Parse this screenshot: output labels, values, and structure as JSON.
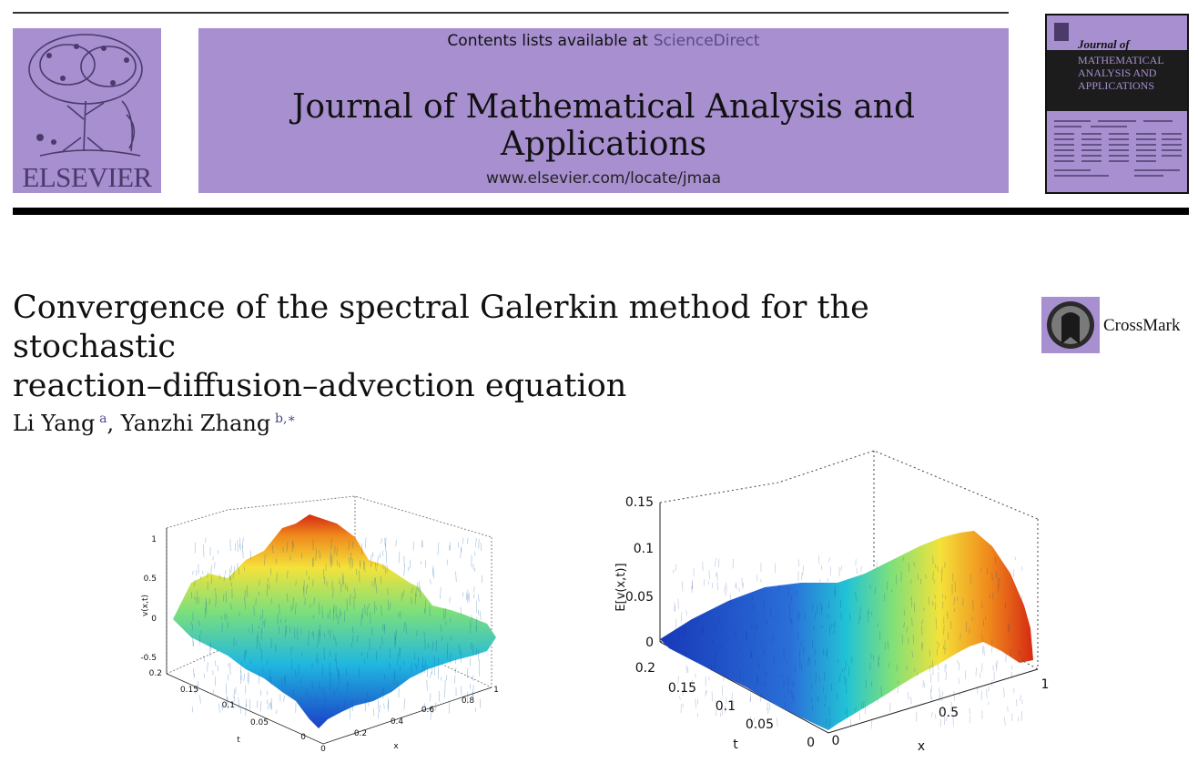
{
  "header": {
    "contents_prefix": "Contents lists available at",
    "contents_link": "ScienceDirect",
    "journal_title": "Journal of Mathematical Analysis and Applications",
    "url": "www.elsevier.com/locate/jmaa",
    "publisher_logo_text": "ELSEVIER",
    "cover_journal": "Journal of",
    "cover_name_lines": [
      "MATHEMATICAL",
      "ANALYSIS AND",
      "APPLICATIONS"
    ],
    "crossmark_label": "CrossMark"
  },
  "article": {
    "title_line1": "Convergence of the spectral Galerkin method for the stochastic",
    "title_line2": "reaction–diffusion–advection equation",
    "authors": [
      {
        "name": "Li Yang",
        "sup": "a"
      },
      {
        "name": "Yanzhi Zhang",
        "sup": "b,∗"
      }
    ]
  },
  "figures": [
    {
      "zlabel": "v(x,t)",
      "xlabel": "x",
      "ylabel": "t",
      "zticks": [
        "1",
        "0.5",
        "0",
        "-0.5"
      ],
      "xticks": [
        "0",
        "0.2",
        "0.4",
        "0.6",
        "0.8",
        "1"
      ],
      "yticks": [
        "0.2",
        "0.15",
        "0.1",
        "0.05",
        "0"
      ]
    },
    {
      "zlabel": "E[v(x,t)]",
      "xlabel": "x",
      "ylabel": "t",
      "zticks": [
        "0.15",
        "0.1",
        "0.05",
        "0"
      ],
      "xticks": [
        "0",
        "0.5",
        "1"
      ],
      "yticks": [
        "0.2",
        "0.15",
        "0.1",
        "0.05",
        "0"
      ]
    }
  ]
}
